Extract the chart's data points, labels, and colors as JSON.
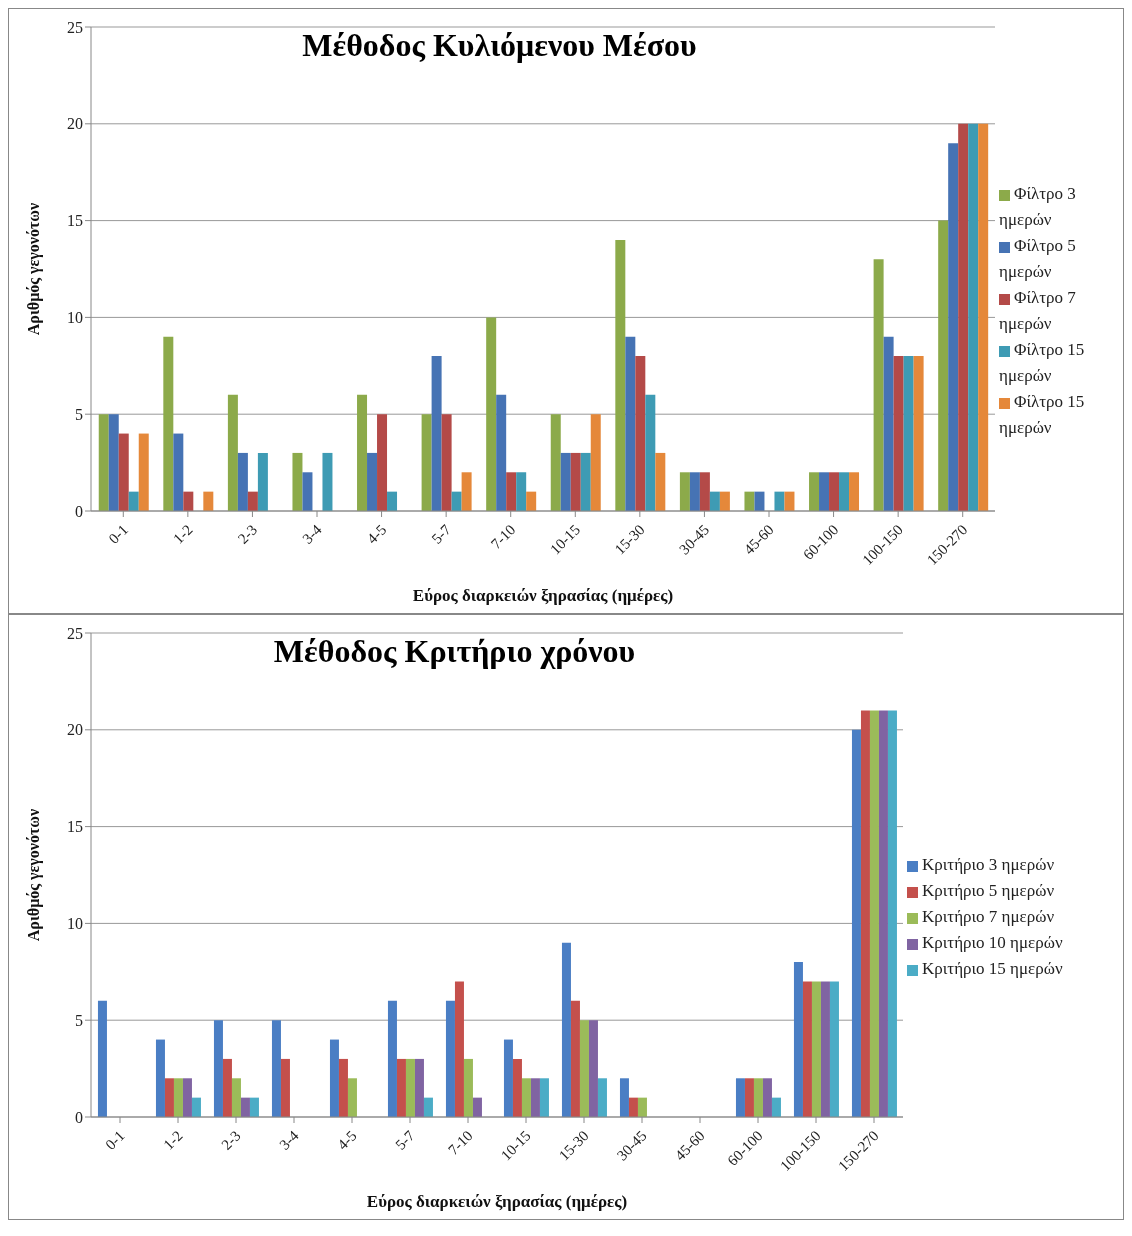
{
  "chart_data": [
    {
      "type": "bar",
      "title": "Μέθοδος Κυλιόμενου Μέσου",
      "xlabel": "Εύρος διαρκειών ξηρασίας (ημέρες)",
      "ylabel": "Αριθμός γεγονότων",
      "categories": [
        "0-1",
        "1-2",
        "2-3",
        "3-4",
        "4-5",
        "5-7",
        "7-10",
        "10-15",
        "15-30",
        "30-45",
        "45-60",
        "60-100",
        "100-150",
        "150-270"
      ],
      "ylim": [
        0,
        25
      ],
      "yticks": [
        0,
        5,
        10,
        15,
        20,
        25
      ],
      "grid": "y",
      "legend": "right",
      "series": [
        {
          "name": "Φίλτρο 3 ημερών",
          "color": "#8caa4a",
          "values": [
            5,
            9,
            6,
            3,
            6,
            5,
            10,
            5,
            14,
            2,
            1,
            2,
            13,
            15
          ]
        },
        {
          "name": "Φίλτρο 5 ημερών",
          "color": "#4673b4",
          "values": [
            5,
            4,
            3,
            2,
            3,
            8,
            6,
            3,
            9,
            2,
            1,
            2,
            9,
            19
          ]
        },
        {
          "name": "Φίλτρο 7 ημερών",
          "color": "#b44a48",
          "values": [
            4,
            1,
            1,
            0,
            5,
            5,
            2,
            3,
            8,
            2,
            0,
            2,
            8,
            20
          ]
        },
        {
          "name": "Φίλτρο 15 ημερών",
          "color": "#3e9bb4",
          "values": [
            1,
            0,
            3,
            3,
            1,
            1,
            2,
            3,
            6,
            1,
            1,
            2,
            8,
            20
          ]
        },
        {
          "name": "Φίλτρο 15 ημερών",
          "color": "#e5883a",
          "values": [
            4,
            1,
            0,
            0,
            0,
            2,
            1,
            5,
            3,
            1,
            1,
            2,
            8,
            20
          ]
        }
      ]
    },
    {
      "type": "bar",
      "title": "Μέθοδος Κριτήριο χρόνου",
      "xlabel": "Εύρος διαρκειών ξηρασίας (ημέρες)",
      "ylabel": "Αριθμός γεγονότων",
      "categories": [
        "0-1",
        "1-2",
        "2-3",
        "3-4",
        "4-5",
        "5-7",
        "7-10",
        "10-15",
        "15-30",
        "30-45",
        "45-60",
        "60-100",
        "100-150",
        "150-270"
      ],
      "ylim": [
        0,
        25
      ],
      "yticks": [
        0,
        5,
        10,
        15,
        20,
        25
      ],
      "grid": "y",
      "legend": "right",
      "series": [
        {
          "name": "Κριτήριο 3 ημερών",
          "color": "#4a7ec4",
          "values": [
            6,
            4,
            5,
            5,
            4,
            6,
            6,
            4,
            9,
            2,
            0,
            2,
            8,
            20
          ]
        },
        {
          "name": "Κριτήριο 5 ημερών",
          "color": "#c4504c",
          "values": [
            0,
            2,
            3,
            3,
            3,
            3,
            7,
            3,
            6,
            1,
            0,
            2,
            7,
            21
          ]
        },
        {
          "name": "Κριτήριο 7 ημερών",
          "color": "#9bbb59",
          "values": [
            0,
            2,
            2,
            0,
            2,
            3,
            3,
            2,
            5,
            1,
            0,
            2,
            7,
            21
          ]
        },
        {
          "name": "Κριτήριο 10 ημερών",
          "color": "#8064a2",
          "values": [
            0,
            2,
            1,
            0,
            0,
            3,
            1,
            2,
            5,
            0,
            0,
            2,
            7,
            21
          ]
        },
        {
          "name": "Κριτήριο 15 ημερών",
          "color": "#4bacc6",
          "values": [
            0,
            1,
            1,
            0,
            0,
            1,
            0,
            2,
            2,
            0,
            0,
            1,
            7,
            21
          ]
        }
      ]
    }
  ]
}
